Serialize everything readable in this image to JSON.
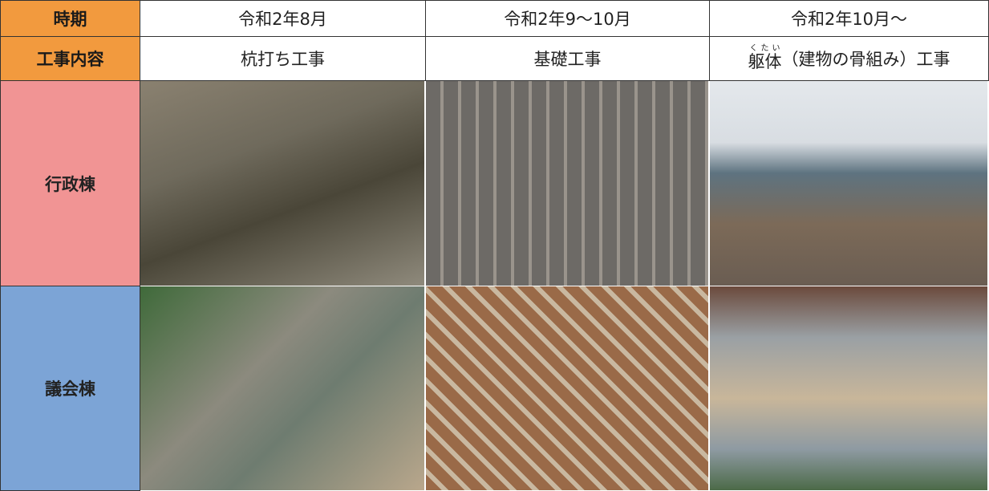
{
  "table": {
    "rows": [
      [
        "時期",
        "令和2年8月",
        "令和2年9～10月",
        "令和2年10月～"
      ],
      [
        "工事内容",
        "杭打ち工事",
        "基礎工事",
        {
          "ruby_base": "躯体",
          "ruby": "くたい",
          "text": "（建物の骨組み）工事"
        }
      ]
    ],
    "photo_rows": [
      {
        "label": "行政棟"
      },
      {
        "label": "議会棟"
      }
    ]
  }
}
